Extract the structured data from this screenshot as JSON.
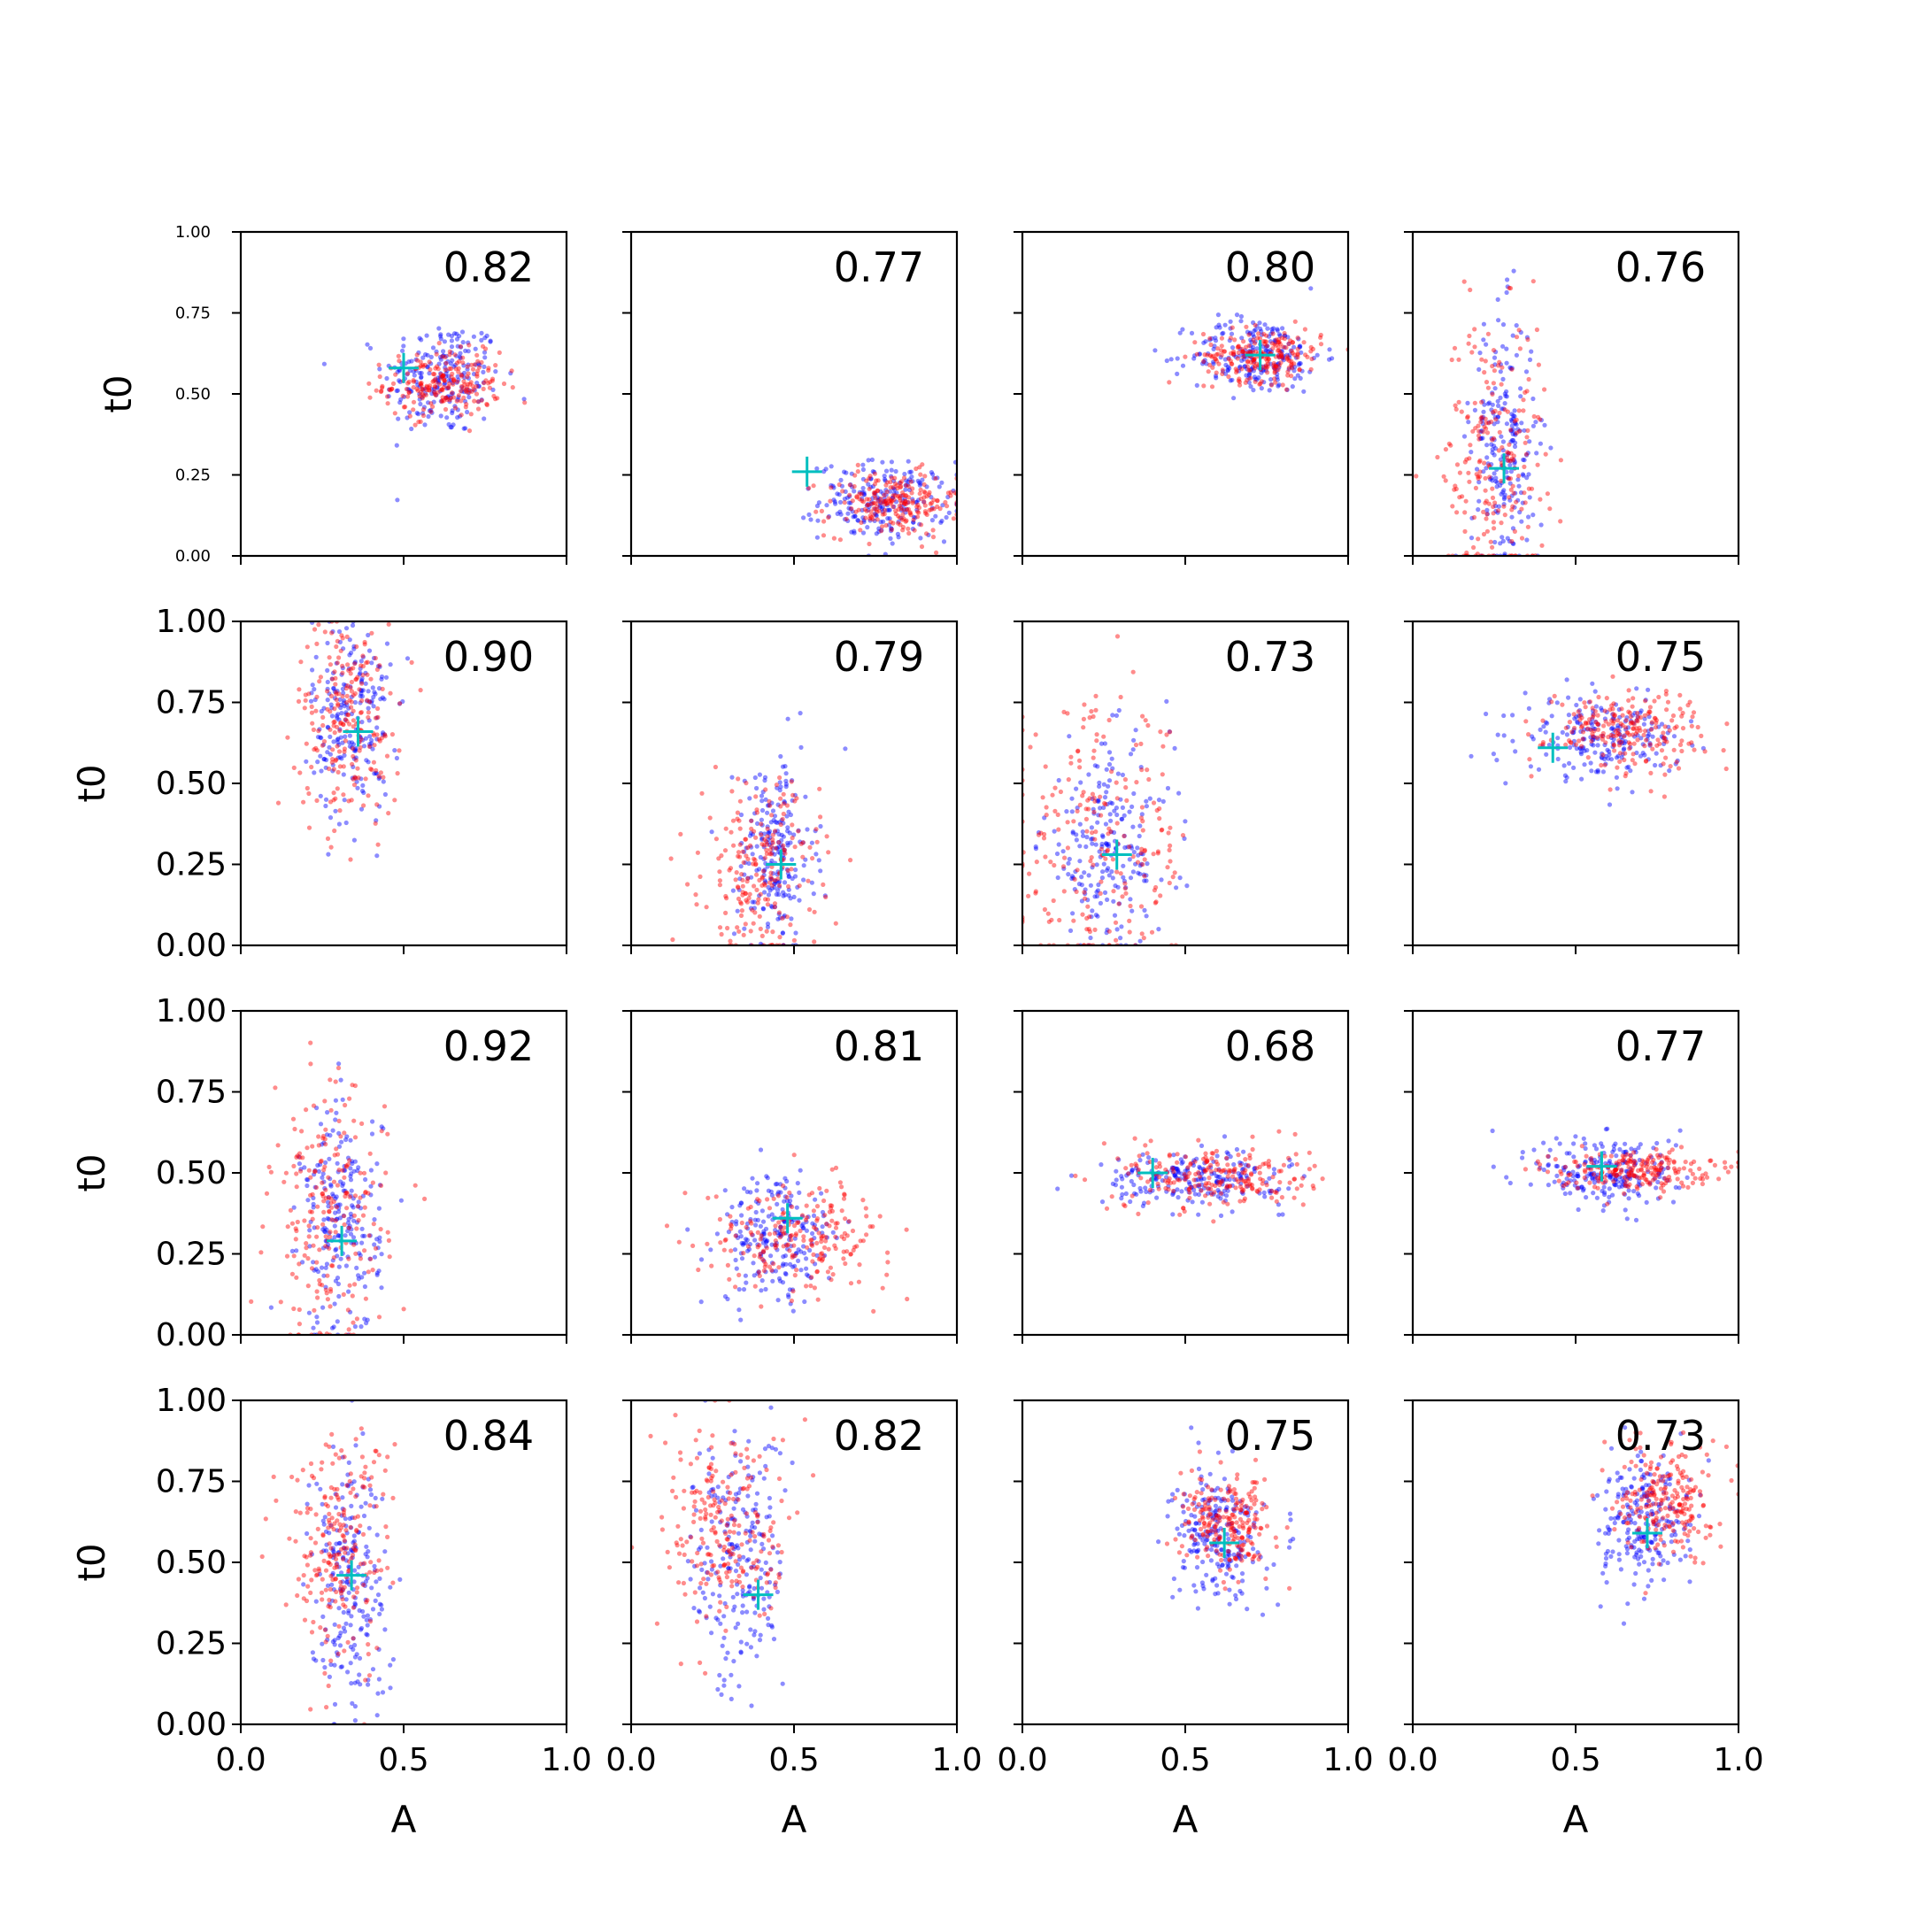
{
  "chart_data": {
    "type": "scatter",
    "layout": {
      "rows": 4,
      "cols": 4,
      "sharex": true,
      "sharey": true
    },
    "xlabel": "A",
    "ylabel": "t0",
    "xlim": [
      0,
      1
    ],
    "ylim": [
      0,
      1
    ],
    "xticks": [
      "0.0",
      "0.5",
      "1.0"
    ],
    "yticks": [
      "0.00",
      "0.25",
      "0.50",
      "0.75",
      "1.00"
    ],
    "colors": {
      "series_blue": "#0000ff",
      "series_red": "#ff0000",
      "marker": "#00bfbf"
    },
    "panels": [
      {
        "score": "0.82",
        "marker": [
          0.5,
          0.58
        ],
        "blue": {
          "cx": 0.62,
          "cy": 0.55,
          "sx": 0.09,
          "sy": 0.09
        },
        "red": {
          "cx": 0.62,
          "cy": 0.53,
          "sx": 0.09,
          "sy": 0.05
        }
      },
      {
        "score": "0.77",
        "marker": [
          0.54,
          0.26
        ],
        "blue": {
          "cx": 0.78,
          "cy": 0.17,
          "sx": 0.1,
          "sy": 0.06
        },
        "red": {
          "cx": 0.8,
          "cy": 0.16,
          "sx": 0.1,
          "sy": 0.05
        }
      },
      {
        "score": "0.80",
        "marker": [
          0.73,
          0.62
        ],
        "blue": {
          "cx": 0.72,
          "cy": 0.62,
          "sx": 0.1,
          "sy": 0.06
        },
        "red": {
          "cx": 0.74,
          "cy": 0.62,
          "sx": 0.09,
          "sy": 0.04
        }
      },
      {
        "score": "0.76",
        "marker": [
          0.28,
          0.27
        ],
        "blue": {
          "cx": 0.28,
          "cy": 0.35,
          "sx": 0.05,
          "sy": 0.2
        },
        "red": {
          "cx": 0.25,
          "cy": 0.3,
          "sx": 0.08,
          "sy": 0.22
        }
      },
      {
        "score": "0.90",
        "marker": [
          0.36,
          0.66
        ],
        "blue": {
          "cx": 0.34,
          "cy": 0.7,
          "sx": 0.06,
          "sy": 0.16
        },
        "red": {
          "cx": 0.33,
          "cy": 0.7,
          "sx": 0.08,
          "sy": 0.15
        }
      },
      {
        "score": "0.79",
        "marker": [
          0.46,
          0.25
        ],
        "blue": {
          "cx": 0.44,
          "cy": 0.28,
          "sx": 0.06,
          "sy": 0.15
        },
        "red": {
          "cx": 0.4,
          "cy": 0.24,
          "sx": 0.09,
          "sy": 0.13
        }
      },
      {
        "score": "0.73",
        "marker": [
          0.29,
          0.28
        ],
        "blue": {
          "cx": 0.26,
          "cy": 0.3,
          "sx": 0.1,
          "sy": 0.16
        },
        "red": {
          "cx": 0.24,
          "cy": 0.3,
          "sx": 0.14,
          "sy": 0.22
        }
      },
      {
        "score": "0.75",
        "marker": [
          0.43,
          0.61
        ],
        "blue": {
          "cx": 0.58,
          "cy": 0.64,
          "sx": 0.12,
          "sy": 0.06
        },
        "red": {
          "cx": 0.65,
          "cy": 0.67,
          "sx": 0.12,
          "sy": 0.06
        }
      },
      {
        "score": "0.92",
        "marker": [
          0.31,
          0.29
        ],
        "blue": {
          "cx": 0.31,
          "cy": 0.35,
          "sx": 0.06,
          "sy": 0.18
        },
        "red": {
          "cx": 0.27,
          "cy": 0.35,
          "sx": 0.09,
          "sy": 0.2
        }
      },
      {
        "score": "0.81",
        "marker": [
          0.48,
          0.36
        ],
        "blue": {
          "cx": 0.45,
          "cy": 0.3,
          "sx": 0.09,
          "sy": 0.1
        },
        "red": {
          "cx": 0.52,
          "cy": 0.31,
          "sx": 0.14,
          "sy": 0.08
        }
      },
      {
        "score": "0.68",
        "marker": [
          0.4,
          0.5
        ],
        "blue": {
          "cx": 0.52,
          "cy": 0.48,
          "sx": 0.14,
          "sy": 0.04
        },
        "red": {
          "cx": 0.6,
          "cy": 0.49,
          "sx": 0.14,
          "sy": 0.05
        }
      },
      {
        "score": "0.77",
        "marker": [
          0.58,
          0.52
        ],
        "blue": {
          "cx": 0.6,
          "cy": 0.5,
          "sx": 0.11,
          "sy": 0.06
        },
        "red": {
          "cx": 0.68,
          "cy": 0.51,
          "sx": 0.12,
          "sy": 0.03
        }
      },
      {
        "score": "0.84",
        "marker": [
          0.34,
          0.46
        ],
        "blue": {
          "cx": 0.33,
          "cy": 0.45,
          "sx": 0.06,
          "sy": 0.2
        },
        "red": {
          "cx": 0.3,
          "cy": 0.55,
          "sx": 0.08,
          "sy": 0.18
        }
      },
      {
        "score": "0.82",
        "marker": [
          0.39,
          0.4
        ],
        "blue": {
          "cx": 0.33,
          "cy": 0.5,
          "sx": 0.07,
          "sy": 0.2
        },
        "red": {
          "cx": 0.3,
          "cy": 0.6,
          "sx": 0.1,
          "sy": 0.16
        }
      },
      {
        "score": "0.75",
        "marker": [
          0.62,
          0.56
        ],
        "blue": {
          "cx": 0.6,
          "cy": 0.58,
          "sx": 0.07,
          "sy": 0.1
        },
        "red": {
          "cx": 0.63,
          "cy": 0.62,
          "sx": 0.07,
          "sy": 0.07
        }
      },
      {
        "score": "0.73",
        "marker": [
          0.72,
          0.59
        ],
        "blue": {
          "cx": 0.71,
          "cy": 0.62,
          "sx": 0.07,
          "sy": 0.1
        },
        "red": {
          "cx": 0.78,
          "cy": 0.7,
          "sx": 0.07,
          "sy": 0.09
        }
      }
    ]
  }
}
